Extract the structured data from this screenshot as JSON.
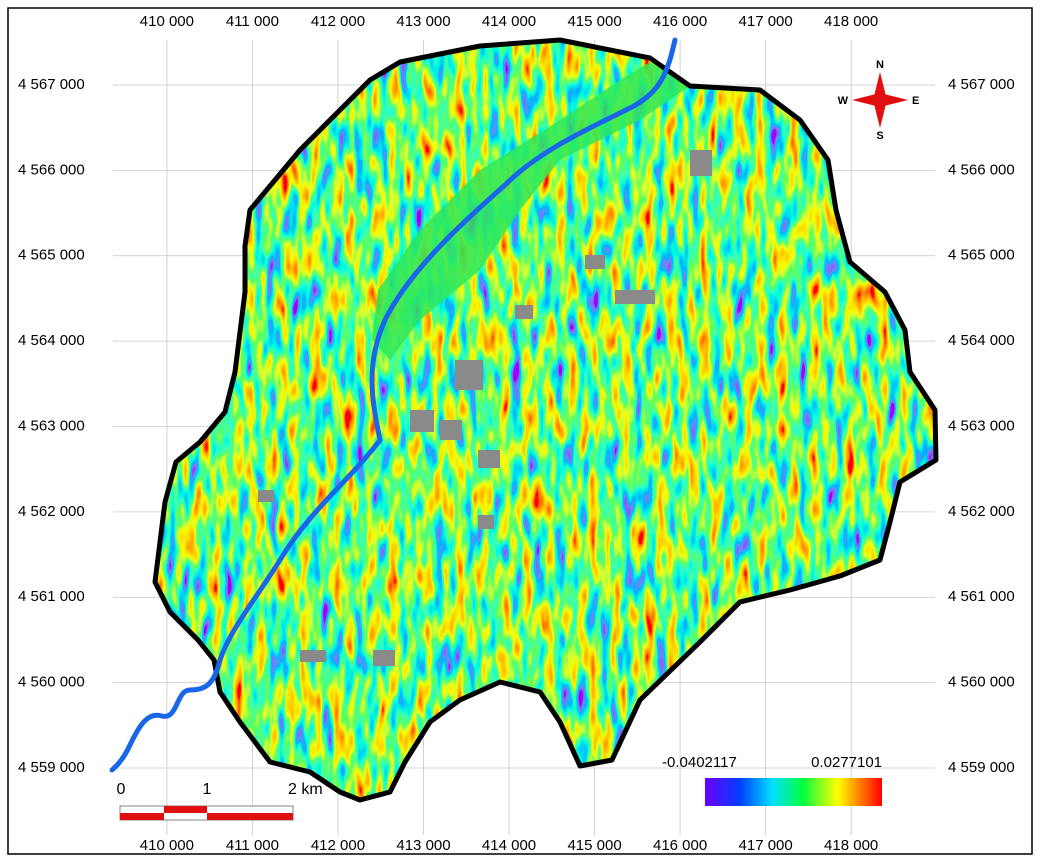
{
  "map": {
    "xlim": [
      409370,
      418980
    ],
    "ylim": [
      4558215,
      4567527
    ],
    "xticks": [
      {
        "value": 410000,
        "label": "410 000"
      },
      {
        "value": 411000,
        "label": "411 000"
      },
      {
        "value": 412000,
        "label": "412 000"
      },
      {
        "value": 413000,
        "label": "413 000"
      },
      {
        "value": 414000,
        "label": "414 000"
      },
      {
        "value": 415000,
        "label": "415 000"
      },
      {
        "value": 416000,
        "label": "416 000"
      },
      {
        "value": 417000,
        "label": "417 000"
      },
      {
        "value": 418000,
        "label": "418 000"
      }
    ],
    "yticks": [
      {
        "value": 4559000,
        "label": "4 559 000"
      },
      {
        "value": 4560000,
        "label": "4 560 000"
      },
      {
        "value": 4561000,
        "label": "4 561 000"
      },
      {
        "value": 4562000,
        "label": "4 562 000"
      },
      {
        "value": 4563000,
        "label": "4 563 000"
      },
      {
        "value": 4564000,
        "label": "4 564 000"
      },
      {
        "value": 4565000,
        "label": "4 565 000"
      },
      {
        "value": 4566000,
        "label": "4 566 000"
      },
      {
        "value": 4567000,
        "label": "4 567 000"
      }
    ],
    "legend": {
      "min": -0.0402117,
      "max": 0.0277101
    },
    "scale_bar": {
      "labels": [
        "0",
        "1",
        "2 km"
      ]
    },
    "compass": {
      "n": "N",
      "s": "S",
      "e": "E",
      "w": "W"
    }
  }
}
